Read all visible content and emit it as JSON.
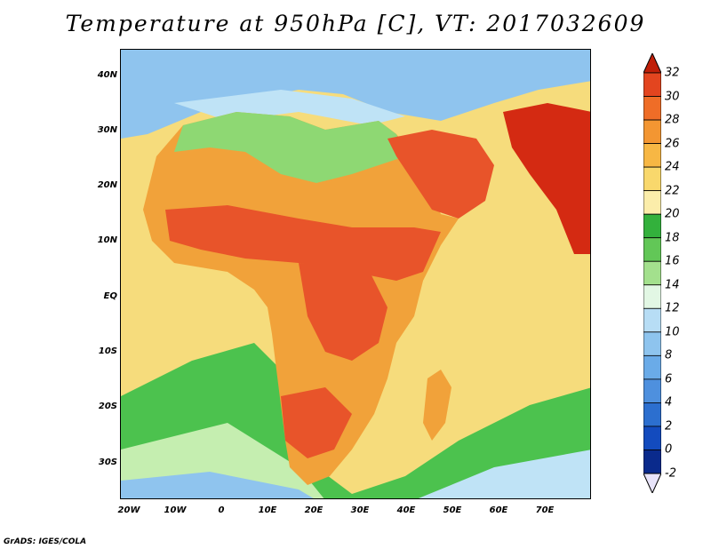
{
  "title": "Temperature at 950hPa [C], VT: 2017032609",
  "credit": "GrADS: IGES/COLA",
  "map": {
    "lat_labels": [
      "40N",
      "30N",
      "20N",
      "10N",
      "EQ",
      "10S",
      "20S",
      "30S"
    ],
    "lon_labels": [
      "20W",
      "10W",
      "0",
      "10E",
      "20E",
      "30E",
      "40E",
      "50E",
      "60E",
      "70E"
    ],
    "colors": {
      "ocean": "#f6dc7c",
      "land_base": "#f1a23a",
      "hot": "#e8542a",
      "very_hot": "#d42a12",
      "cool_green": "#8ed873",
      "green": "#4cc24e",
      "light_green": "#c5eeb0",
      "cool_blue": "#8fc4ee",
      "light_blue": "#bfe3f6",
      "mid_blue": "#5fa3e3"
    }
  },
  "colorbar": {
    "labels": [
      "32",
      "30",
      "28",
      "26",
      "24",
      "22",
      "20",
      "18",
      "16",
      "14",
      "12",
      "10",
      "8",
      "6",
      "4",
      "2",
      "0",
      "-2"
    ],
    "colors": [
      "#c01f08",
      "#e3451f",
      "#ef6d27",
      "#f39632",
      "#f7b744",
      "#f9d86c",
      "#fbedaa",
      "#33b13c",
      "#62c757",
      "#a3e08d",
      "#e2f7e4",
      "#b7ddf5",
      "#8ec4ee",
      "#6aabe8",
      "#4e90de",
      "#2c6fcf",
      "#134bbe",
      "#0a2a8c",
      "#e8e4fa"
    ],
    "top_arrow_color": "#c01f08",
    "bottom_arrow_color": "#e8e4fa"
  }
}
